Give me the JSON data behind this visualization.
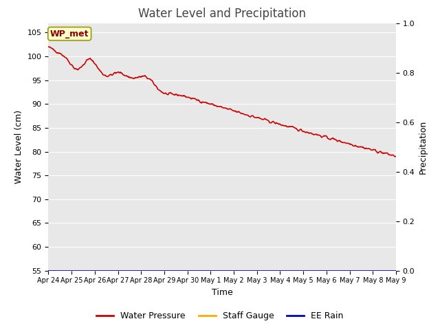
{
  "title": "Water Level and Precipitation",
  "xlabel": "Time",
  "ylabel_left": "Water Level (cm)",
  "ylabel_right": "Precipitation",
  "ylim_left": [
    55,
    107
  ],
  "ylim_right": [
    0.0,
    1.0
  ],
  "yticks_left": [
    55,
    60,
    65,
    70,
    75,
    80,
    85,
    90,
    95,
    100,
    105
  ],
  "yticks_right": [
    0.0,
    0.2,
    0.4,
    0.6,
    0.8,
    1.0
  ],
  "x_tick_labels": [
    "Apr 24",
    "Apr 25",
    "Apr 26",
    "Apr 27",
    "Apr 28",
    "Apr 29",
    "Apr 30",
    "May 1",
    "May 2",
    "May 3",
    "May 4",
    "May 5",
    "May 6",
    "May 7",
    "May 8",
    "May 9"
  ],
  "water_pressure_color": "#cc0000",
  "staff_gauge_color": "#ffaa00",
  "ee_rain_color": "#0000cc",
  "background_color": "#e8e8e8",
  "annotation_text": "WP_met",
  "annotation_bg": "#ffffcc",
  "annotation_border": "#999900",
  "legend_labels": [
    "Water Pressure",
    "Staff Gauge",
    "EE Rain"
  ],
  "title_fontsize": 12,
  "axis_label_fontsize": 9,
  "tick_fontsize": 8,
  "annotation_fontsize": 9
}
